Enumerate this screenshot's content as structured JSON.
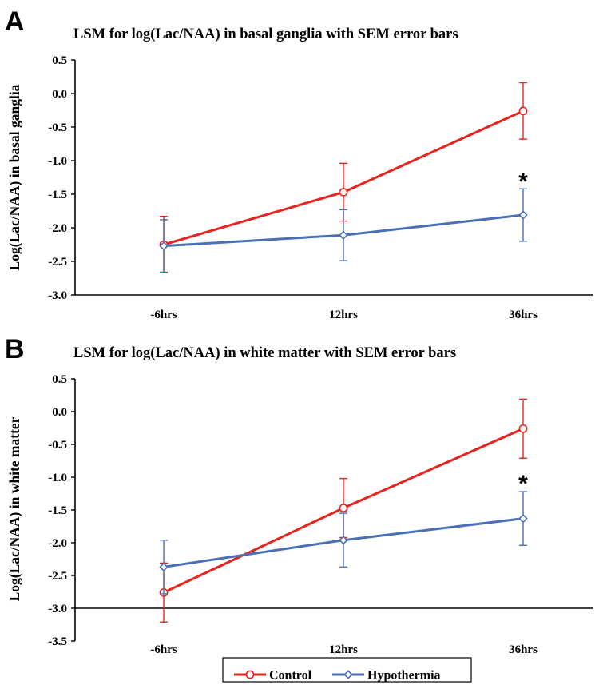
{
  "colors": {
    "control": "#E8231E",
    "hypothermia": "#4A6FB5",
    "axis": "#000000"
  },
  "legend": {
    "placement": "bottom-center",
    "items": [
      {
        "label": "Control",
        "marker": "circle",
        "color": "#E8231E"
      },
      {
        "label": "Hypothermia",
        "marker": "diamond",
        "color": "#4A6FB5"
      }
    ]
  },
  "chart_data": [
    {
      "panel": "A",
      "type": "line",
      "title": "LSM for log(Lac/NAA) in basal ganglia with SEM error bars",
      "xlabel": "",
      "ylabel": "Log(Lac/NAA) in basal ganglia",
      "categories": [
        "-6hrs",
        "12hrs",
        "36hrs"
      ],
      "ylim": [
        -3.0,
        0.5
      ],
      "yticks": [
        "0.5",
        "0.0",
        "-0.5",
        "-1.0",
        "-1.5",
        "-2.0",
        "-2.5",
        "-3.0"
      ],
      "x_axis_at": -3.0,
      "grid": false,
      "series": [
        {
          "name": "Control",
          "values": [
            -2.25,
            -1.47,
            -0.26
          ],
          "sem": [
            0.42,
            0.43,
            0.42
          ]
        },
        {
          "name": "Hypothermia",
          "values": [
            -2.27,
            -2.11,
            -1.81
          ],
          "sem": [
            0.39,
            0.38,
            0.39
          ]
        }
      ],
      "annotations": [
        {
          "text": "*",
          "category": "36hrs",
          "y": -1.26
        }
      ]
    },
    {
      "panel": "B",
      "type": "line",
      "title": "LSM for log(Lac/NAA) in white matter with SEM error bars",
      "xlabel": "",
      "ylabel": "Log(Lac/NAA) in white matter",
      "categories": [
        "-6hrs",
        "12hrs",
        "36hrs"
      ],
      "ylim": [
        -3.5,
        0.5
      ],
      "yticks": [
        "0.5",
        "0.0",
        "-0.5",
        "-1.0",
        "-1.5",
        "-2.0",
        "-2.5",
        "-3.0",
        "-3.5"
      ],
      "x_axis_at": -3.0,
      "grid": false,
      "series": [
        {
          "name": "Control",
          "values": [
            -2.76,
            -1.47,
            -0.26
          ],
          "sem": [
            0.45,
            0.45,
            0.45
          ]
        },
        {
          "name": "Hypothermia",
          "values": [
            -2.37,
            -1.96,
            -1.63
          ],
          "sem": [
            0.41,
            0.41,
            0.41
          ]
        }
      ],
      "annotations": [
        {
          "text": "*",
          "category": "36hrs",
          "y": -1.05
        }
      ]
    }
  ]
}
